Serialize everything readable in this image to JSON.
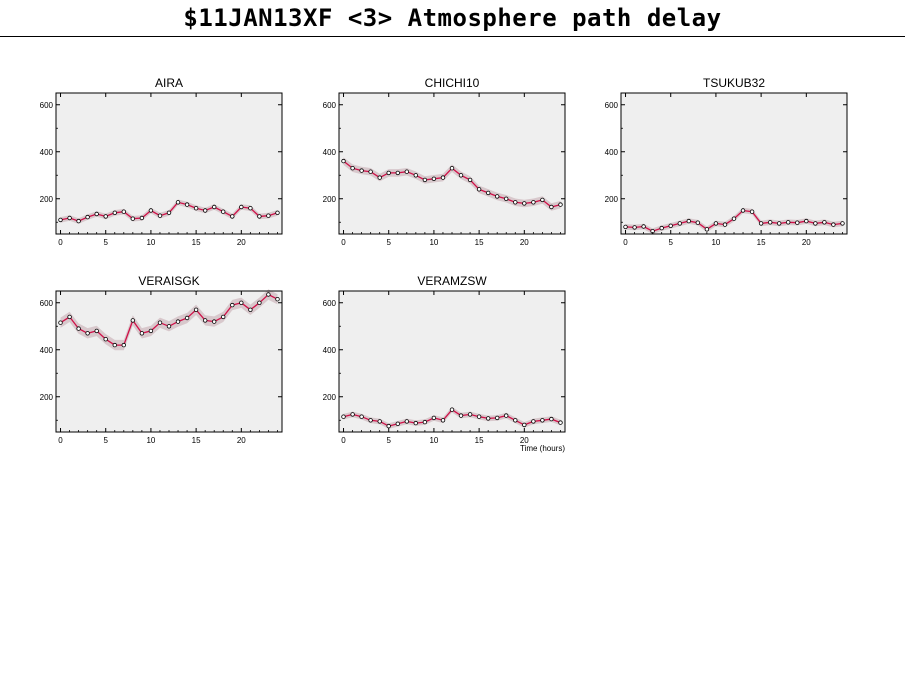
{
  "page": {
    "title": "$11JAN13XF <3>  Atmosphere path delay"
  },
  "style": {
    "panel_bg": "#efefef",
    "band_color": "#d8c8cc",
    "line_color": "#d01048",
    "marker_fill": "#ffffff",
    "marker_stroke": "#000000"
  },
  "chart_data": [
    {
      "type": "line",
      "title": "AIRA",
      "xlim": [
        -0.5,
        24.5
      ],
      "ylim": [
        50,
        650
      ],
      "xticks": [
        0,
        5,
        10,
        15,
        20
      ],
      "yticks": [
        200,
        400,
        600
      ],
      "xlabel": "",
      "x": [
        0,
        1,
        2,
        3,
        4,
        5,
        6,
        7,
        8,
        9,
        10,
        11,
        12,
        13,
        14,
        15,
        16,
        17,
        18,
        19,
        20,
        21,
        22,
        23,
        24
      ],
      "y": [
        110,
        118,
        105,
        122,
        135,
        125,
        140,
        145,
        115,
        118,
        150,
        128,
        140,
        185,
        175,
        160,
        150,
        165,
        145,
        125,
        165,
        160,
        125,
        128,
        140
      ],
      "band": 12
    },
    {
      "type": "line",
      "title": "CHICHI10",
      "xlim": [
        -0.5,
        24.5
      ],
      "ylim": [
        50,
        650
      ],
      "xticks": [
        0,
        5,
        10,
        15,
        20
      ],
      "yticks": [
        200,
        400,
        600
      ],
      "xlabel": "",
      "x": [
        0,
        1,
        2,
        3,
        4,
        5,
        6,
        7,
        8,
        9,
        10,
        11,
        12,
        13,
        14,
        15,
        16,
        17,
        18,
        19,
        20,
        21,
        22,
        23,
        24
      ],
      "y": [
        360,
        330,
        320,
        315,
        290,
        310,
        310,
        315,
        300,
        280,
        285,
        290,
        330,
        300,
        280,
        240,
        225,
        210,
        200,
        185,
        180,
        185,
        195,
        165,
        175
      ],
      "band": 16
    },
    {
      "type": "line",
      "title": "TSUKUB32",
      "xlim": [
        -0.5,
        24.5
      ],
      "ylim": [
        50,
        650
      ],
      "xticks": [
        0,
        5,
        10,
        15,
        20
      ],
      "yticks": [
        200,
        400,
        600
      ],
      "xlabel": "",
      "x": [
        0,
        1,
        2,
        3,
        4,
        5,
        6,
        7,
        8,
        9,
        10,
        11,
        12,
        13,
        14,
        15,
        16,
        17,
        18,
        19,
        20,
        21,
        22,
        23,
        24
      ],
      "y": [
        80,
        78,
        82,
        62,
        75,
        85,
        95,
        105,
        98,
        70,
        95,
        90,
        115,
        150,
        145,
        95,
        100,
        95,
        100,
        98,
        105,
        95,
        100,
        90,
        95
      ],
      "band": 12
    },
    {
      "type": "line",
      "title": "VERAISGK",
      "xlim": [
        -0.5,
        24.5
      ],
      "ylim": [
        50,
        650
      ],
      "xticks": [
        0,
        5,
        10,
        15,
        20
      ],
      "yticks": [
        200,
        400,
        600
      ],
      "xlabel": "",
      "x": [
        0,
        1,
        2,
        3,
        4,
        5,
        6,
        7,
        8,
        9,
        10,
        11,
        12,
        13,
        14,
        15,
        16,
        17,
        18,
        19,
        20,
        21,
        22,
        23,
        24
      ],
      "y": [
        515,
        540,
        490,
        470,
        480,
        445,
        420,
        420,
        525,
        470,
        480,
        515,
        500,
        520,
        535,
        570,
        525,
        520,
        540,
        590,
        600,
        570,
        600,
        635,
        615
      ],
      "band": 22
    },
    {
      "type": "line",
      "title": "VERAMZSW",
      "xlim": [
        -0.5,
        24.5
      ],
      "ylim": [
        50,
        650
      ],
      "xticks": [
        0,
        5,
        10,
        15,
        20
      ],
      "yticks": [
        200,
        400,
        600
      ],
      "xlabel": "Time (hours)",
      "x": [
        0,
        1,
        2,
        3,
        4,
        5,
        6,
        7,
        8,
        9,
        10,
        11,
        12,
        13,
        14,
        15,
        16,
        17,
        18,
        19,
        20,
        21,
        22,
        23,
        24
      ],
      "y": [
        115,
        125,
        115,
        100,
        95,
        75,
        85,
        95,
        88,
        92,
        110,
        100,
        145,
        120,
        125,
        115,
        108,
        110,
        120,
        100,
        80,
        95,
        100,
        105,
        90
      ],
      "band": 12
    }
  ]
}
